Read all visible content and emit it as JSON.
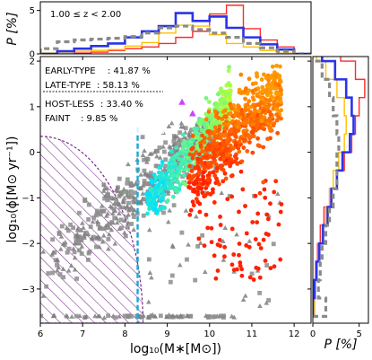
{
  "chart_data": [
    {
      "panel": "main",
      "type": "scatter",
      "xlabel": "log$_{10}$(M$_*$[M$_{\\odot}$])",
      "xlabel_display": "log₁₀(M∗[M⊙])",
      "ylabel_display": "log₁₀(ϕ[M⊙ yr⁻¹])",
      "xlim": [
        6,
        12.4
      ],
      "ylim": [
        -3.75,
        2.1
      ],
      "x_ticks": [
        "6",
        "7",
        "8",
        "9",
        "10",
        "11",
        "12"
      ],
      "y_ticks": [
        "2",
        "1",
        "0",
        "−1",
        "−2",
        "−3"
      ],
      "legend_position": "upper-left",
      "legend": [
        {
          "label": "EARLY-TYPE",
          "value": ": 41.87  %"
        },
        {
          "label": "LATE-TYPE",
          "value": "  : 58.13 %"
        },
        {
          "label": "HOST-LESS",
          "value": "  : 33.40 %"
        },
        {
          "label": "FAINT",
          "value": "     :  9.85  %"
        }
      ],
      "completeness_limit_x": 8.3,
      "excluded_region": "hatched ellipse, lower-left",
      "series": [
        {
          "population": "early-type galaxies",
          "color_range": [
            "#ff2000",
            "#ff9a00"
          ],
          "x_range": [
            9.4,
            11.8
          ],
          "y_range": [
            -2.9,
            2.0
          ]
        },
        {
          "population": "late-type galaxies",
          "color_range": [
            "#00e0ff",
            "#b0ff40"
          ],
          "x_range": [
            8.4,
            10.6
          ],
          "y_range": [
            -1.4,
            1.9
          ]
        },
        {
          "population": "host-less / faint",
          "color": "#808080",
          "x_range": [
            6.0,
            10.5
          ],
          "y_range": [
            -3.6,
            0.6
          ]
        }
      ]
    },
    {
      "panel": "top",
      "type": "line",
      "title": "1.00 ≤ z < 2.00",
      "ylabel": "P [%]",
      "y_ticks": [
        "5",
        "0"
      ],
      "ylim": [
        0,
        6
      ],
      "x": [
        6.0,
        6.4,
        6.8,
        7.2,
        7.6,
        8.0,
        8.4,
        8.8,
        9.2,
        9.6,
        10.0,
        10.4,
        10.8,
        11.2,
        11.6,
        12.0
      ],
      "series": [
        {
          "color": "#ff2a2a",
          "values": [
            0.0,
            0.0,
            0.1,
            0.2,
            0.4,
            0.6,
            0.8,
            1.2,
            1.9,
            2.6,
            4.6,
            5.6,
            2.9,
            1.6,
            0.8,
            0.0
          ]
        },
        {
          "color": "#ffc000",
          "values": [
            0.1,
            0.2,
            0.3,
            0.4,
            0.5,
            0.9,
            1.3,
            2.4,
            3.3,
            3.2,
            2.2,
            1.2,
            0.8,
            0.4,
            0.1,
            0.0
          ]
        },
        {
          "color": "#2a34e8",
          "values": [
            0.0,
            0.3,
            0.6,
            0.9,
            1.2,
            1.9,
            2.6,
            3.2,
            4.7,
            3.8,
            4.3,
            3.0,
            1.9,
            1.1,
            0.5,
            0.0
          ]
        },
        {
          "color": "#8a8a8a",
          "dashed": true,
          "values": [
            0.6,
            1.4,
            1.6,
            1.7,
            1.8,
            2.0,
            2.4,
            3.0,
            3.2,
            2.8,
            2.4,
            1.9,
            1.2,
            0.7,
            0.3,
            0.0
          ]
        }
      ]
    },
    {
      "panel": "right",
      "type": "line",
      "xlabel": "P [%]",
      "x_ticks": [
        "0",
        "5"
      ],
      "xlim": [
        0,
        6
      ],
      "y": [
        -3.6,
        -3.2,
        -2.8,
        -2.4,
        -2.0,
        -1.6,
        -1.2,
        -0.8,
        -0.4,
        0.0,
        0.4,
        0.8,
        1.2,
        1.6,
        2.0
      ],
      "series": [
        {
          "color": "#ff2a2a",
          "values": [
            0.0,
            0.1,
            0.3,
            0.5,
            0.8,
            1.2,
            1.8,
            2.6,
            3.4,
            4.2,
            4.6,
            5.0,
            5.6,
            4.6,
            3.0
          ]
        },
        {
          "color": "#ffc000",
          "values": [
            0.2,
            0.2,
            0.4,
            0.6,
            1.0,
            1.4,
            1.8,
            2.2,
            2.8,
            3.4,
            3.6,
            3.4,
            2.6,
            1.4,
            0.4
          ]
        },
        {
          "color": "#2a34e8",
          "values": [
            0.0,
            0.2,
            0.4,
            0.7,
            1.1,
            1.6,
            2.0,
            2.6,
            3.2,
            4.0,
            4.4,
            4.2,
            3.6,
            2.4,
            1.0
          ]
        },
        {
          "color": "#8a8a8a",
          "dashed": true,
          "values": [
            1.4,
            0.6,
            0.8,
            1.0,
            1.4,
            1.8,
            2.2,
            2.6,
            2.6,
            2.8,
            2.6,
            2.2,
            1.8,
            1.0,
            0.4
          ]
        }
      ]
    }
  ]
}
